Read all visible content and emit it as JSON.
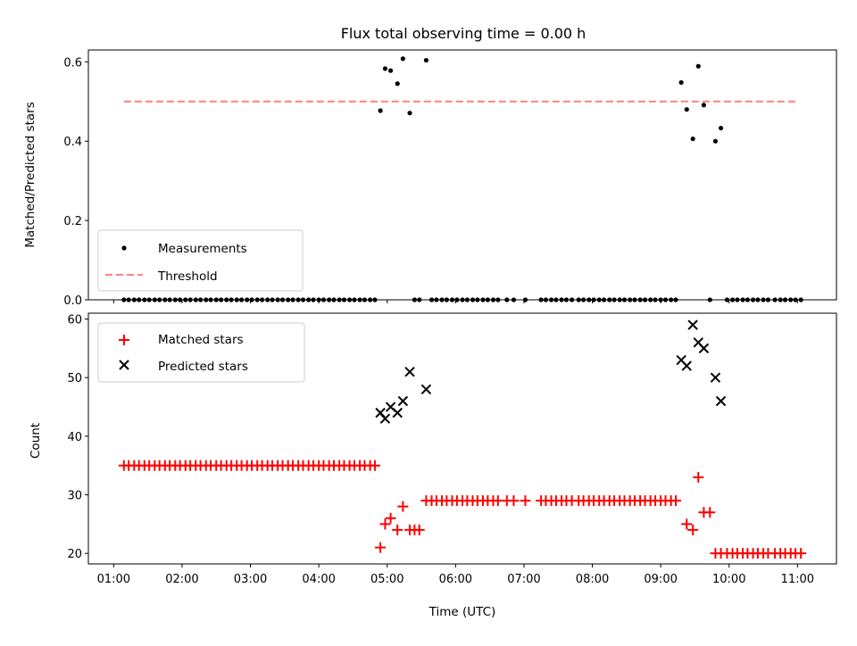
{
  "title": "Flux total observing time = 0.00 h",
  "xlabel": "Time (UTC)",
  "x_tick_labels": [
    "01:00",
    "02:00",
    "03:00",
    "04:00",
    "05:00",
    "06:00",
    "07:00",
    "08:00",
    "09:00",
    "10:00",
    "11:00"
  ],
  "chart_data": [
    {
      "type": "scatter",
      "ylabel": "Matched/Predicted stars",
      "xlim": [
        0.63,
        11.57
      ],
      "ylim": [
        0.0,
        0.63
      ],
      "x_unit": "hours UTC",
      "yticks": [
        0.0,
        0.2,
        0.4,
        0.6
      ],
      "ytick_labels": [
        "0.0",
        "0.2",
        "0.4",
        "0.6"
      ],
      "legend": {
        "position": "lower-left",
        "entries": [
          "Measurements",
          "Threshold"
        ]
      },
      "threshold": {
        "name": "Threshold",
        "y": 0.5,
        "x": [
          1.15,
          11.0
        ],
        "color": "#ff7f7f",
        "style": "dashed"
      },
      "series": [
        {
          "name": "Measurements",
          "color": "#000000",
          "marker": "dot",
          "points": [
            [
              1.15,
              0
            ],
            [
              1.22,
              0
            ],
            [
              1.3,
              0
            ],
            [
              1.37,
              0
            ],
            [
              1.45,
              0
            ],
            [
              1.52,
              0
            ],
            [
              1.6,
              0
            ],
            [
              1.67,
              0
            ],
            [
              1.75,
              0
            ],
            [
              1.82,
              0
            ],
            [
              1.9,
              0
            ],
            [
              1.97,
              0
            ],
            [
              2.05,
              0
            ],
            [
              2.12,
              0
            ],
            [
              2.2,
              0
            ],
            [
              2.27,
              0
            ],
            [
              2.35,
              0
            ],
            [
              2.42,
              0
            ],
            [
              2.5,
              0
            ],
            [
              2.57,
              0
            ],
            [
              2.65,
              0
            ],
            [
              2.72,
              0
            ],
            [
              2.8,
              0
            ],
            [
              2.87,
              0
            ],
            [
              2.95,
              0
            ],
            [
              3.02,
              0
            ],
            [
              3.1,
              0
            ],
            [
              3.17,
              0
            ],
            [
              3.25,
              0
            ],
            [
              3.32,
              0
            ],
            [
              3.4,
              0
            ],
            [
              3.47,
              0
            ],
            [
              3.55,
              0
            ],
            [
              3.62,
              0
            ],
            [
              3.7,
              0
            ],
            [
              3.77,
              0
            ],
            [
              3.85,
              0
            ],
            [
              3.92,
              0
            ],
            [
              4.0,
              0
            ],
            [
              4.07,
              0
            ],
            [
              4.15,
              0
            ],
            [
              4.22,
              0
            ],
            [
              4.3,
              0
            ],
            [
              4.37,
              0
            ],
            [
              4.45,
              0
            ],
            [
              4.52,
              0
            ],
            [
              4.6,
              0
            ],
            [
              4.67,
              0
            ],
            [
              4.75,
              0
            ],
            [
              4.82,
              0
            ],
            [
              4.9,
              0.477
            ],
            [
              4.97,
              0.583
            ],
            [
              5.05,
              0.578
            ],
            [
              5.15,
              0.545
            ],
            [
              5.23,
              0.608
            ],
            [
              5.33,
              0.471
            ],
            [
              5.57,
              0.604
            ],
            [
              5.4,
              0
            ],
            [
              5.47,
              0
            ],
            [
              5.65,
              0
            ],
            [
              5.72,
              0
            ],
            [
              5.8,
              0
            ],
            [
              5.87,
              0
            ],
            [
              5.95,
              0
            ],
            [
              6.02,
              0
            ],
            [
              6.1,
              0
            ],
            [
              6.17,
              0
            ],
            [
              6.25,
              0
            ],
            [
              6.32,
              0
            ],
            [
              6.4,
              0
            ],
            [
              6.47,
              0
            ],
            [
              6.55,
              0
            ],
            [
              6.62,
              0
            ],
            [
              6.75,
              0
            ],
            [
              6.85,
              0
            ],
            [
              7.02,
              0
            ],
            [
              7.25,
              0
            ],
            [
              7.32,
              0
            ],
            [
              7.4,
              0
            ],
            [
              7.47,
              0
            ],
            [
              7.55,
              0
            ],
            [
              7.62,
              0
            ],
            [
              7.7,
              0
            ],
            [
              7.8,
              0
            ],
            [
              7.87,
              0
            ],
            [
              7.95,
              0
            ],
            [
              8.02,
              0
            ],
            [
              8.1,
              0
            ],
            [
              8.17,
              0
            ],
            [
              8.25,
              0
            ],
            [
              8.32,
              0
            ],
            [
              8.4,
              0
            ],
            [
              8.47,
              0
            ],
            [
              8.55,
              0
            ],
            [
              8.62,
              0
            ],
            [
              8.7,
              0
            ],
            [
              8.77,
              0
            ],
            [
              8.85,
              0
            ],
            [
              8.92,
              0
            ],
            [
              9.0,
              0
            ],
            [
              9.07,
              0
            ],
            [
              9.15,
              0
            ],
            [
              9.22,
              0
            ],
            [
              9.3,
              0.548
            ],
            [
              9.38,
              0.48
            ],
            [
              9.47,
              0.406
            ],
            [
              9.55,
              0.589
            ],
            [
              9.63,
              0.491
            ],
            [
              9.8,
              0.4
            ],
            [
              9.88,
              0.433
            ],
            [
              9.72,
              0
            ],
            [
              9.97,
              0
            ],
            [
              10.05,
              0
            ],
            [
              10.12,
              0
            ],
            [
              10.2,
              0
            ],
            [
              10.27,
              0
            ],
            [
              10.35,
              0
            ],
            [
              10.42,
              0
            ],
            [
              10.5,
              0
            ],
            [
              10.57,
              0
            ],
            [
              10.67,
              0
            ],
            [
              10.75,
              0
            ],
            [
              10.82,
              0
            ],
            [
              10.9,
              0
            ],
            [
              10.97,
              0
            ],
            [
              11.05,
              0
            ]
          ]
        }
      ]
    },
    {
      "type": "scatter",
      "ylabel": "Count",
      "xlim": [
        0.63,
        11.57
      ],
      "ylim": [
        18.2,
        61.0
      ],
      "x_unit": "hours UTC",
      "yticks": [
        20,
        30,
        40,
        50,
        60
      ],
      "ytick_labels": [
        "20",
        "30",
        "40",
        "50",
        "60"
      ],
      "legend": {
        "position": "upper-left",
        "entries": [
          "Matched stars",
          "Predicted stars"
        ]
      },
      "series": [
        {
          "name": "Matched stars",
          "color": "#ff0000",
          "marker": "plus",
          "points": [
            [
              1.15,
              35
            ],
            [
              1.22,
              35
            ],
            [
              1.3,
              35
            ],
            [
              1.37,
              35
            ],
            [
              1.45,
              35
            ],
            [
              1.52,
              35
            ],
            [
              1.6,
              35
            ],
            [
              1.67,
              35
            ],
            [
              1.75,
              35
            ],
            [
              1.82,
              35
            ],
            [
              1.9,
              35
            ],
            [
              1.97,
              35
            ],
            [
              2.05,
              35
            ],
            [
              2.12,
              35
            ],
            [
              2.2,
              35
            ],
            [
              2.27,
              35
            ],
            [
              2.35,
              35
            ],
            [
              2.42,
              35
            ],
            [
              2.5,
              35
            ],
            [
              2.57,
              35
            ],
            [
              2.65,
              35
            ],
            [
              2.72,
              35
            ],
            [
              2.8,
              35
            ],
            [
              2.87,
              35
            ],
            [
              2.95,
              35
            ],
            [
              3.02,
              35
            ],
            [
              3.1,
              35
            ],
            [
              3.17,
              35
            ],
            [
              3.25,
              35
            ],
            [
              3.32,
              35
            ],
            [
              3.4,
              35
            ],
            [
              3.47,
              35
            ],
            [
              3.55,
              35
            ],
            [
              3.62,
              35
            ],
            [
              3.7,
              35
            ],
            [
              3.77,
              35
            ],
            [
              3.85,
              35
            ],
            [
              3.92,
              35
            ],
            [
              4.0,
              35
            ],
            [
              4.07,
              35
            ],
            [
              4.15,
              35
            ],
            [
              4.22,
              35
            ],
            [
              4.3,
              35
            ],
            [
              4.37,
              35
            ],
            [
              4.45,
              35
            ],
            [
              4.52,
              35
            ],
            [
              4.6,
              35
            ],
            [
              4.67,
              35
            ],
            [
              4.75,
              35
            ],
            [
              4.82,
              35
            ],
            [
              4.9,
              21
            ],
            [
              4.97,
              25
            ],
            [
              5.05,
              26
            ],
            [
              5.15,
              24
            ],
            [
              5.23,
              28
            ],
            [
              5.33,
              24
            ],
            [
              5.4,
              24
            ],
            [
              5.47,
              24
            ],
            [
              5.57,
              29
            ],
            [
              5.65,
              29
            ],
            [
              5.72,
              29
            ],
            [
              5.8,
              29
            ],
            [
              5.87,
              29
            ],
            [
              5.95,
              29
            ],
            [
              6.02,
              29
            ],
            [
              6.1,
              29
            ],
            [
              6.17,
              29
            ],
            [
              6.25,
              29
            ],
            [
              6.32,
              29
            ],
            [
              6.4,
              29
            ],
            [
              6.47,
              29
            ],
            [
              6.55,
              29
            ],
            [
              6.62,
              29
            ],
            [
              6.75,
              29
            ],
            [
              6.85,
              29
            ],
            [
              7.02,
              29
            ],
            [
              7.25,
              29
            ],
            [
              7.32,
              29
            ],
            [
              7.4,
              29
            ],
            [
              7.47,
              29
            ],
            [
              7.55,
              29
            ],
            [
              7.62,
              29
            ],
            [
              7.7,
              29
            ],
            [
              7.8,
              29
            ],
            [
              7.87,
              29
            ],
            [
              7.95,
              29
            ],
            [
              8.02,
              29
            ],
            [
              8.1,
              29
            ],
            [
              8.17,
              29
            ],
            [
              8.25,
              29
            ],
            [
              8.32,
              29
            ],
            [
              8.4,
              29
            ],
            [
              8.47,
              29
            ],
            [
              8.55,
              29
            ],
            [
              8.62,
              29
            ],
            [
              8.7,
              29
            ],
            [
              8.77,
              29
            ],
            [
              8.85,
              29
            ],
            [
              8.92,
              29
            ],
            [
              9.0,
              29
            ],
            [
              9.07,
              29
            ],
            [
              9.15,
              29
            ],
            [
              9.22,
              29
            ],
            [
              9.38,
              25
            ],
            [
              9.47,
              24
            ],
            [
              9.55,
              33
            ],
            [
              9.63,
              27
            ],
            [
              9.72,
              27
            ],
            [
              9.8,
              20
            ],
            [
              9.88,
              20
            ],
            [
              9.97,
              20
            ],
            [
              10.05,
              20
            ],
            [
              10.12,
              20
            ],
            [
              10.2,
              20
            ],
            [
              10.27,
              20
            ],
            [
              10.35,
              20
            ],
            [
              10.42,
              20
            ],
            [
              10.5,
              20
            ],
            [
              10.57,
              20
            ],
            [
              10.67,
              20
            ],
            [
              10.75,
              20
            ],
            [
              10.82,
              20
            ],
            [
              10.9,
              20
            ],
            [
              10.97,
              20
            ],
            [
              11.05,
              20
            ]
          ]
        },
        {
          "name": "Predicted stars",
          "color": "#000000",
          "marker": "x",
          "points": [
            [
              4.9,
              44
            ],
            [
              4.97,
              43
            ],
            [
              5.05,
              45
            ],
            [
              5.15,
              44
            ],
            [
              5.23,
              46
            ],
            [
              5.33,
              51
            ],
            [
              5.57,
              48
            ],
            [
              9.3,
              53
            ],
            [
              9.38,
              52
            ],
            [
              9.47,
              59
            ],
            [
              9.55,
              56
            ],
            [
              9.63,
              55
            ],
            [
              9.8,
              50
            ],
            [
              9.88,
              46
            ]
          ]
        }
      ]
    }
  ]
}
